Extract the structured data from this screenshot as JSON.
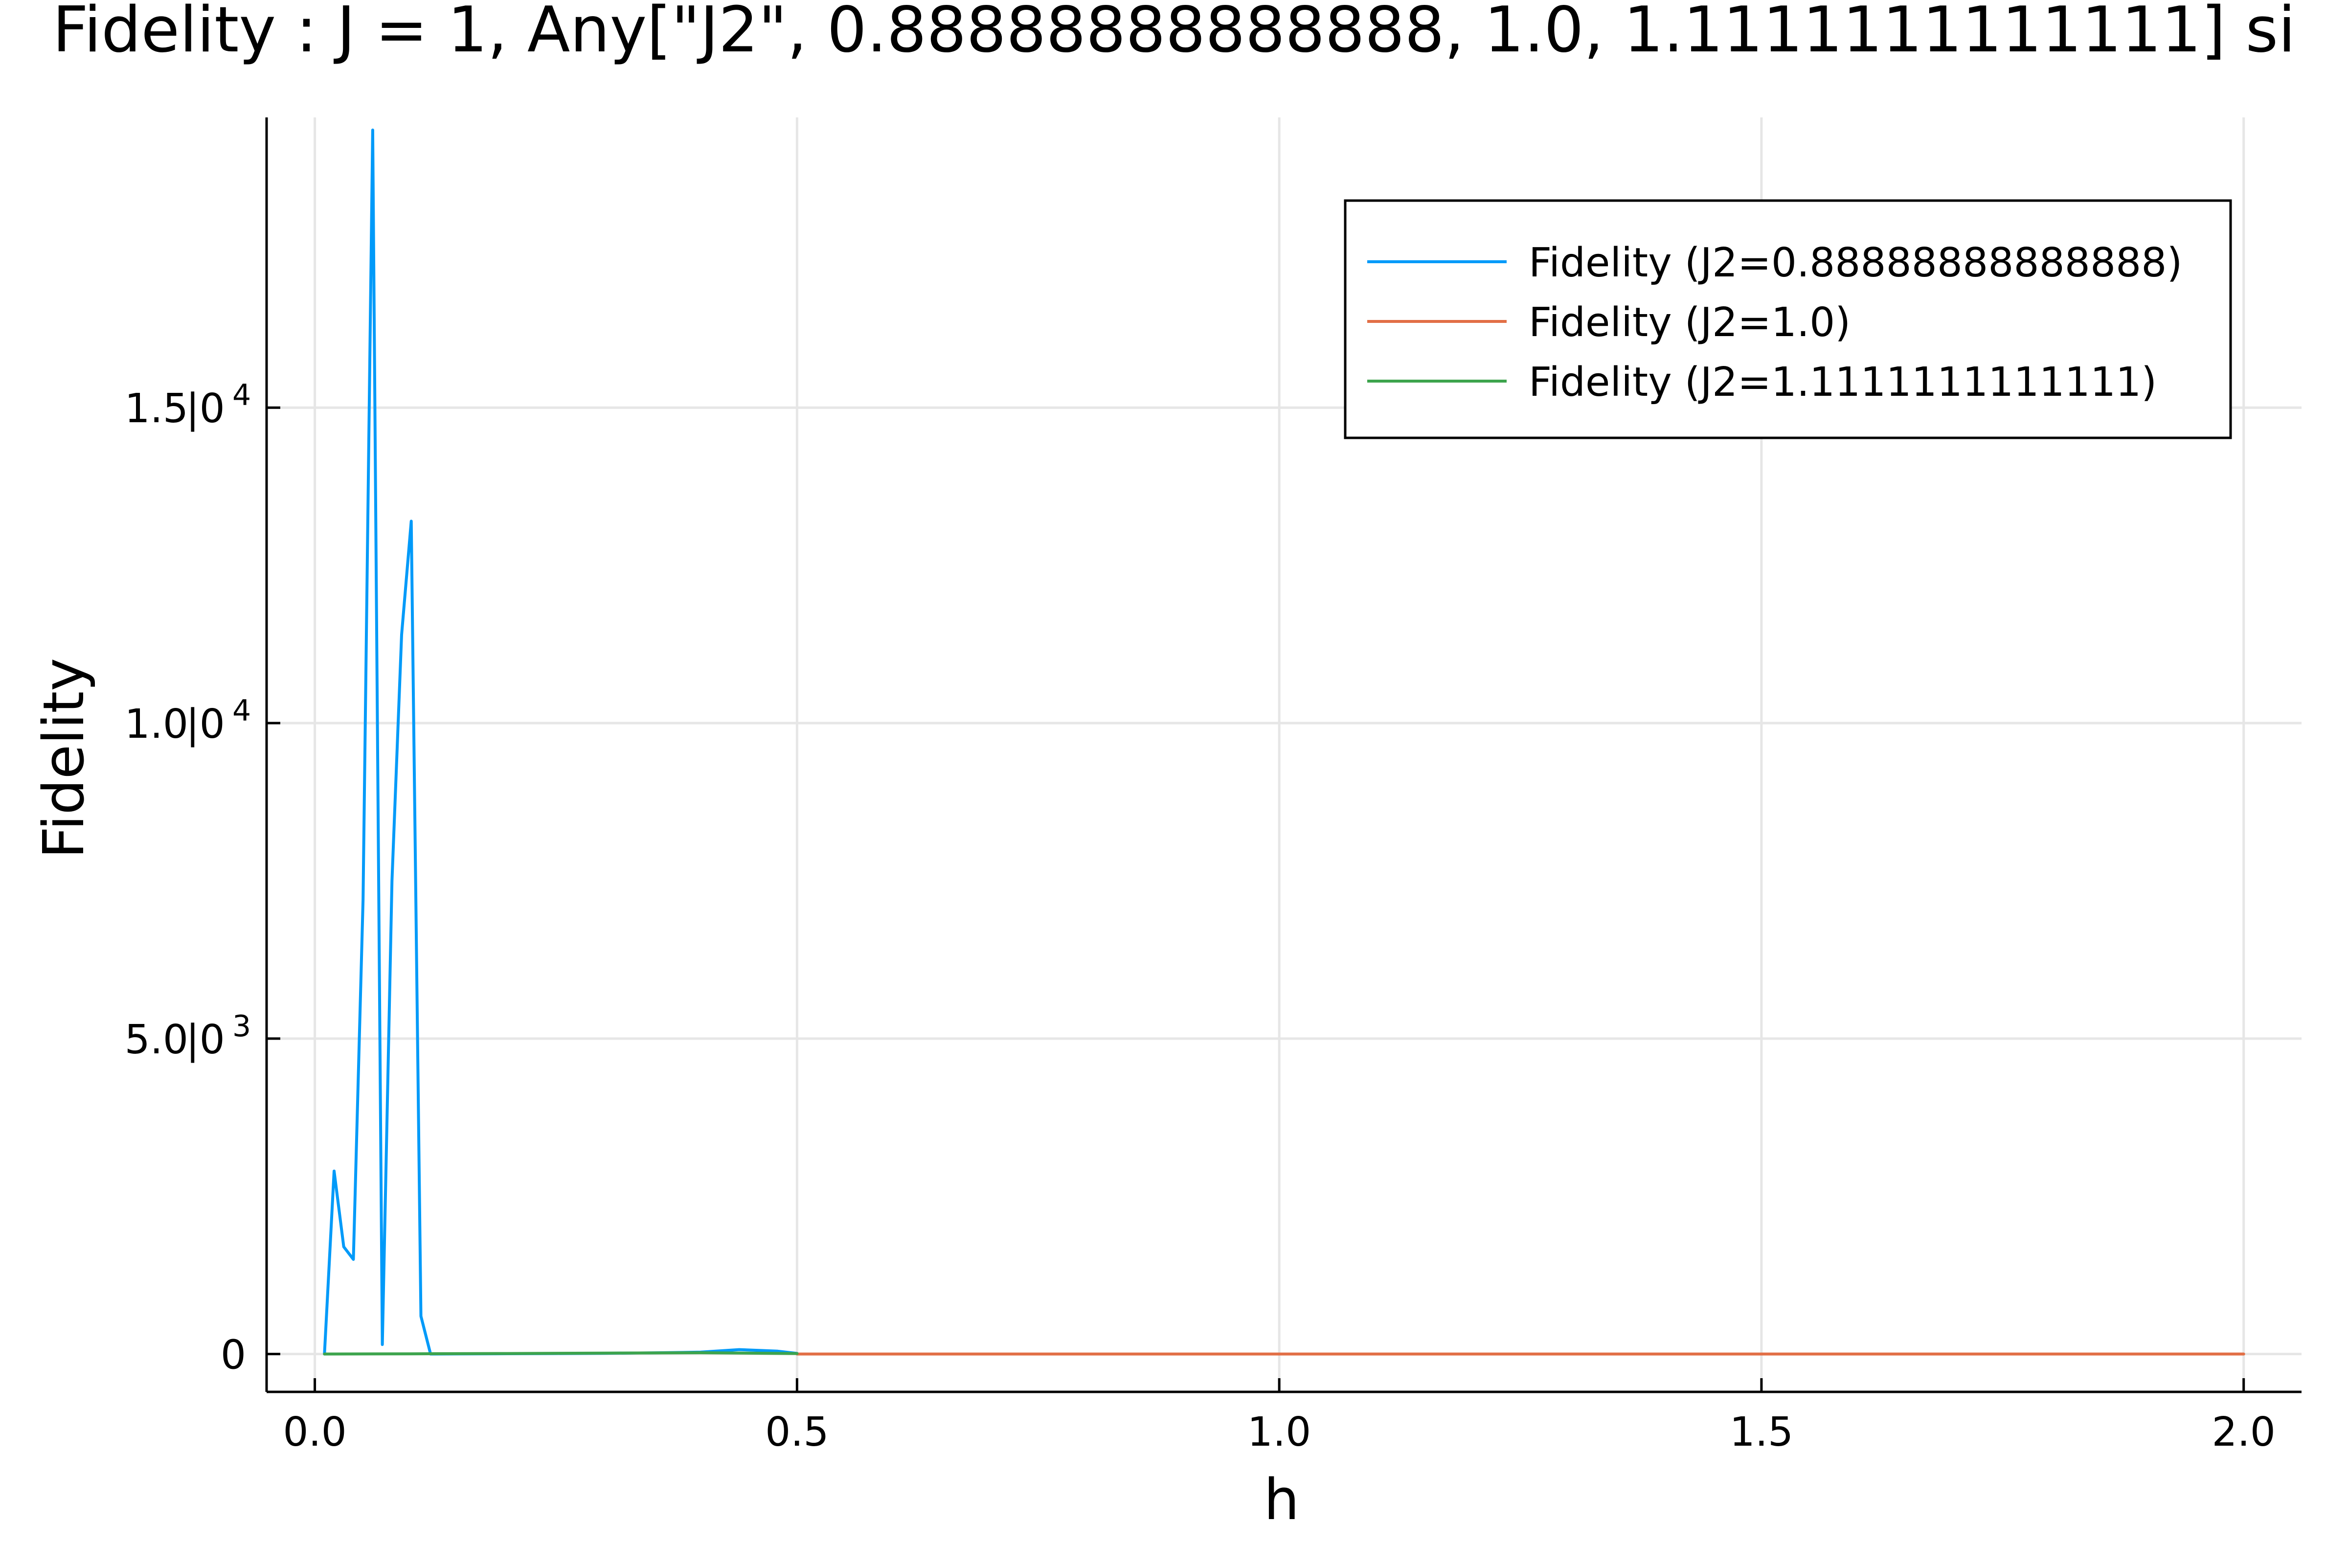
{
  "chart_data": {
    "type": "line",
    "title": "Fidelity : J = 1, Any[\"J2\", 0.88888888888888, 1.0, 1.1111111111111] si",
    "xlabel": "h",
    "ylabel": "Fidelity",
    "xlim": [
      -0.05,
      2.06
    ],
    "ylim": [
      -600,
      19600
    ],
    "grid": true,
    "legend_position": "top-right",
    "x_ticks": [
      {
        "value": 0.0,
        "label": "0.0"
      },
      {
        "value": 0.5,
        "label": "0.5"
      },
      {
        "value": 1.0,
        "label": "1.0"
      },
      {
        "value": 1.5,
        "label": "1.5"
      },
      {
        "value": 2.0,
        "label": "2.0"
      }
    ],
    "y_ticks": [
      {
        "value": 0,
        "label": "0",
        "exp": ""
      },
      {
        "value": 5000,
        "label": "5.0",
        "exp": "3"
      },
      {
        "value": 10000,
        "label": "1.0",
        "exp": "4"
      },
      {
        "value": 15000,
        "label": "1.5",
        "exp": "4"
      }
    ],
    "series": [
      {
        "name": "Fidelity (J2=0.88888888888888)",
        "color": "#009af9",
        "x": [
          0.01,
          0.02,
          0.03,
          0.04,
          0.05,
          0.06,
          0.07,
          0.08,
          0.09,
          0.1,
          0.11,
          0.12,
          0.15,
          0.2,
          0.25,
          0.3,
          0.35,
          0.4,
          0.44,
          0.48,
          0.5
        ],
        "y": [
          0,
          2900,
          1700,
          1500,
          7200,
          19400,
          150,
          7500,
          11400,
          13200,
          600,
          0,
          2,
          5,
          8,
          12,
          18,
          30,
          70,
          45,
          10
        ]
      },
      {
        "name": "Fidelity (J2=1.0)",
        "color": "#e26f46",
        "x": [
          0.5,
          0.75,
          1.0,
          1.25,
          1.5,
          1.75,
          2.0
        ],
        "y": [
          0,
          0,
          0,
          0,
          0,
          0,
          0
        ]
      },
      {
        "name": "Fidelity (J2=1.1111111111111)",
        "color": "#3da44d",
        "x": [
          0.01,
          0.1,
          0.2,
          0.3,
          0.4,
          0.5
        ],
        "y": [
          0,
          3,
          8,
          15,
          20,
          8
        ]
      }
    ]
  }
}
